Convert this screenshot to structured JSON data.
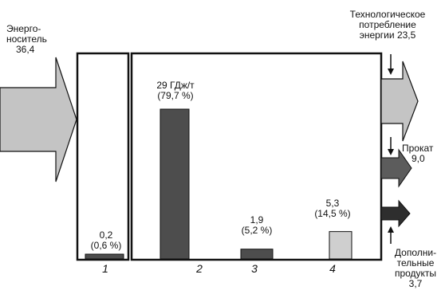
{
  "input": {
    "label_line1": "Энерго-",
    "label_line2": "носитель",
    "value": "36,4"
  },
  "bars": [
    {
      "index": "1",
      "value": 0.2,
      "label_line1": "0,2",
      "label_line2": "(0,6 %)",
      "color": "#4d4d4d"
    },
    {
      "index": "2",
      "value": 29,
      "label_line1": "29 ГДж/т",
      "label_line2": "(79,7 %)",
      "color": "#4d4d4d"
    },
    {
      "index": "3",
      "value": 1.9,
      "label_line1": "1,9",
      "label_line2": "(5,2 %)",
      "color": "#4d4d4d"
    },
    {
      "index": "4",
      "value": 5.3,
      "label_line1": "5,3",
      "label_line2": "(14,5 %)",
      "color": "#cfcfcf"
    }
  ],
  "outputs": {
    "technological": {
      "line1": "Технологическое",
      "line2": "потребление",
      "line3_prefix": "энергии",
      "value": "23,5",
      "color": "#c4c4c4"
    },
    "rolled": {
      "label": "Прокат",
      "value": "9,0",
      "color": "#5c5c5c"
    },
    "byproducts": {
      "line1": "Дополни-",
      "line2": "тельные",
      "line3": "продукты",
      "value": "3,7",
      "color": "#2e2e2e"
    }
  },
  "colors": {
    "input_arrow": "#c4c4c4",
    "stroke": "#111111"
  }
}
